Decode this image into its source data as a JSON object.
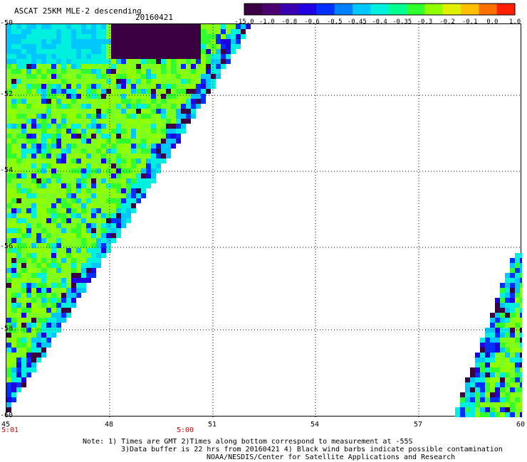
{
  "header": {
    "title": "ASCAT 25KM MLE-2 descending",
    "date": "20160421"
  },
  "colorbar": {
    "labels": [
      "-15.0",
      "-1.0",
      "-0.8",
      "-0.6",
      "-0.5",
      "-0.45",
      "-0.4",
      "-0.35",
      "-0.3",
      "-0.2",
      "-0.1",
      "0.0",
      "1.0"
    ],
    "colors": [
      "#3b0040",
      "#4b0070",
      "#3a00b0",
      "#2000e0",
      "#0030ff",
      "#0080ff",
      "#00c8ff",
      "#00f0e0",
      "#00ff90",
      "#30ff30",
      "#90ff00",
      "#e0f000",
      "#ffc000",
      "#ff7000",
      "#ff2000"
    ]
  },
  "axes": {
    "x_ticks": [
      "45",
      "48",
      "51",
      "54",
      "57",
      "60"
    ],
    "y_ticks": [
      "-50",
      "-52",
      "-54",
      "-56",
      "-58",
      "-60"
    ]
  },
  "times": [
    "5:01",
    "5:00"
  ],
  "notes": [
    "Note: 1) Times are GMT 2)Times along bottom correspond to measurement at -55S",
    "3)Data buffer is 22 hrs from 20160421 4) Black wind barbs indicate possible contamination",
    "NOAA/NESDIS/Center for Satellite Applications and Research"
  ]
}
